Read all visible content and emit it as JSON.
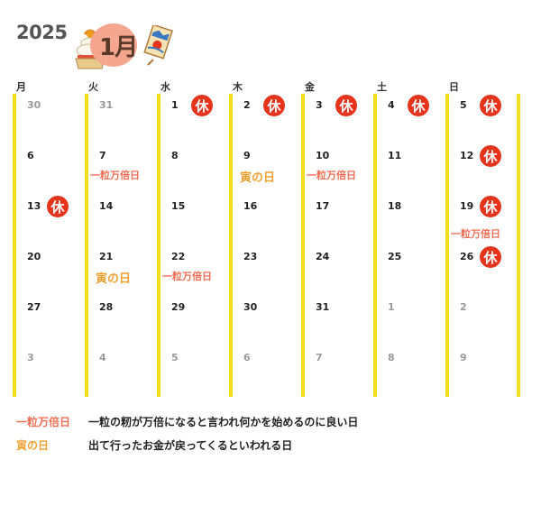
{
  "header": {
    "year": "2025",
    "month": "1月"
  },
  "weekdays": [
    "月",
    "火",
    "水",
    "木",
    "金",
    "土",
    "日"
  ],
  "holiday_glyph": "休",
  "weeks": [
    [
      {
        "d": "30",
        "other": true
      },
      {
        "d": "31",
        "other": true
      },
      {
        "d": "1",
        "holiday": true
      },
      {
        "d": "2",
        "holiday": true
      },
      {
        "d": "3",
        "holiday": true
      },
      {
        "d": "4",
        "holiday": true
      },
      {
        "d": "5",
        "holiday": true
      }
    ],
    [
      {
        "d": "6"
      },
      {
        "d": "7",
        "note": "一粒万倍日",
        "noteType": "ichi"
      },
      {
        "d": "8"
      },
      {
        "d": "9",
        "note": "寅の日",
        "noteType": "tora"
      },
      {
        "d": "10",
        "note": "一粒万倍日",
        "noteType": "ichi"
      },
      {
        "d": "11"
      },
      {
        "d": "12",
        "holiday": true
      }
    ],
    [
      {
        "d": "13",
        "holiday": true
      },
      {
        "d": "14"
      },
      {
        "d": "15"
      },
      {
        "d": "16"
      },
      {
        "d": "17"
      },
      {
        "d": "18"
      },
      {
        "d": "19",
        "holiday": true,
        "note": "一粒万倍日",
        "noteType": "ichi"
      }
    ],
    [
      {
        "d": "20"
      },
      {
        "d": "21",
        "note": "寅の日",
        "noteType": "tora"
      },
      {
        "d": "22",
        "note": "一粒万倍日",
        "noteType": "ichi"
      },
      {
        "d": "23"
      },
      {
        "d": "24"
      },
      {
        "d": "25"
      },
      {
        "d": "26",
        "holiday": true
      }
    ],
    [
      {
        "d": "27"
      },
      {
        "d": "28"
      },
      {
        "d": "29"
      },
      {
        "d": "30"
      },
      {
        "d": "31"
      },
      {
        "d": "1",
        "other": true
      },
      {
        "d": "2",
        "other": true
      }
    ],
    [
      {
        "d": "3",
        "other": true
      },
      {
        "d": "4",
        "other": true
      },
      {
        "d": "5",
        "other": true
      },
      {
        "d": "6",
        "other": true
      },
      {
        "d": "7",
        "other": true
      },
      {
        "d": "8",
        "other": true
      },
      {
        "d": "9",
        "other": true
      }
    ]
  ],
  "legend": [
    {
      "key": "一粒万倍日",
      "desc": "一粒の籾が万倍になると言われ何かを始めるのに良い日",
      "type": "ichi"
    },
    {
      "key": "寅の日",
      "desc": "出て行ったお金が戻ってくるといわれる日",
      "type": "tora"
    }
  ],
  "colors": {
    "holiday": "#e5361d",
    "ichi": "#ee6f55",
    "tora": "#f0a030",
    "line": "#f2e020",
    "bubble": "#f4a78e"
  },
  "icons": [
    "kagami-mochi-icon",
    "kite-icon"
  ]
}
